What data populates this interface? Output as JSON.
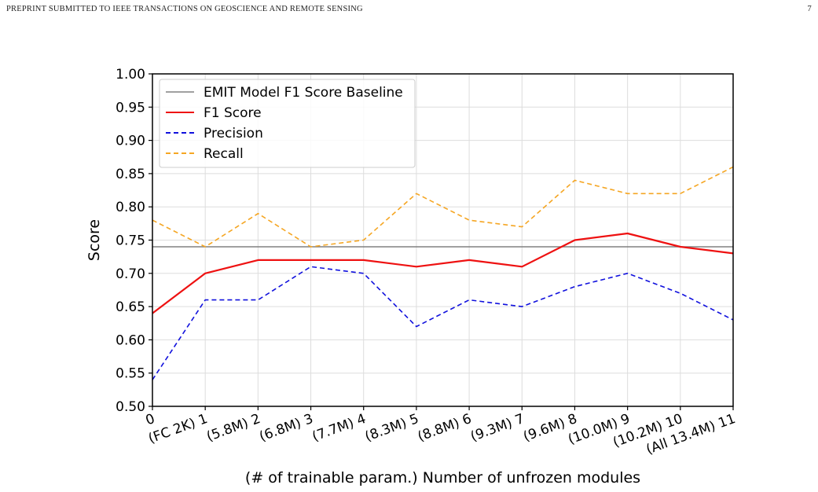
{
  "header": {
    "journal": "PREPRINT SUBMITTED TO IEEE TRANSACTIONS ON GEOSCIENCE AND REMOTE SENSING",
    "page_number": "7"
  },
  "chart_data": {
    "type": "line",
    "xlabel": "(# of trainable param.) Number of unfrozen modules",
    "ylabel": "Score",
    "x": [
      0,
      1,
      2,
      3,
      4,
      5,
      6,
      7,
      8,
      9,
      10,
      11
    ],
    "x_tick_labels": [
      "0",
      "(FC 2K) 1",
      "(5.8M) 2",
      "(6.8M) 3",
      "(7.7M) 4",
      "(8.3M) 5",
      "(8.8M) 6",
      "(9.3M) 7",
      "(9.6M) 8",
      "(10.0M) 9",
      "(10.2M) 10",
      "(All 13.4M) 11"
    ],
    "y_ticks": [
      0.5,
      0.55,
      0.6,
      0.65,
      0.7,
      0.75,
      0.8,
      0.85,
      0.9,
      0.95,
      1.0
    ],
    "xlim": [
      0,
      11
    ],
    "ylim": [
      0.5,
      1.0
    ],
    "grid": true,
    "legend_position": "top-left",
    "series": [
      {
        "name": "EMIT Model F1 Score Baseline",
        "color": "#808080",
        "style": "solid",
        "values": [
          0.74,
          0.74,
          0.74,
          0.74,
          0.74,
          0.74,
          0.74,
          0.74,
          0.74,
          0.74,
          0.74,
          0.74
        ]
      },
      {
        "name": "F1 Score",
        "color": "#ee1111",
        "style": "solid",
        "values": [
          0.64,
          0.7,
          0.72,
          0.72,
          0.72,
          0.71,
          0.72,
          0.71,
          0.75,
          0.76,
          0.74,
          0.73
        ]
      },
      {
        "name": "Precision",
        "color": "#1111dd",
        "style": "dashed",
        "values": [
          0.54,
          0.66,
          0.66,
          0.71,
          0.7,
          0.62,
          0.66,
          0.65,
          0.68,
          0.7,
          0.67,
          0.63
        ]
      },
      {
        "name": "Recall",
        "color": "#f5a623",
        "style": "dashed",
        "values": [
          0.78,
          0.74,
          0.79,
          0.74,
          0.75,
          0.82,
          0.78,
          0.77,
          0.84,
          0.82,
          0.82,
          0.86
        ]
      }
    ]
  }
}
